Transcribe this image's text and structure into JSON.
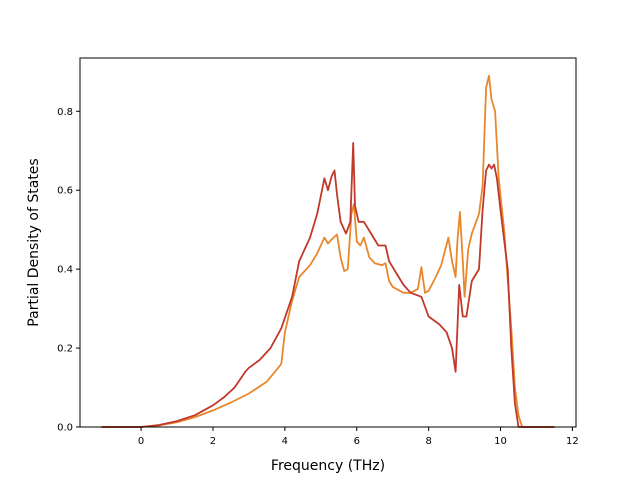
{
  "chart_data": {
    "type": "line",
    "title": "",
    "xlabel": "Frequency (THz)",
    "ylabel": "Partial Density of States",
    "xlim": [
      -1.7,
      12.1
    ],
    "ylim": [
      0.0,
      0.935
    ],
    "xticks": [
      0,
      2,
      4,
      6,
      8,
      10,
      12
    ],
    "yticks": [
      0.0,
      0.2,
      0.4,
      0.6,
      0.8
    ],
    "xtick_labels": [
      "0",
      "2",
      "4",
      "6",
      "8",
      "10",
      "12"
    ],
    "ytick_labels": [
      "0.0",
      "0.2",
      "0.4",
      "0.6",
      "0.8"
    ],
    "grid": false,
    "legend": "none",
    "series": [
      {
        "color": "#e8872b",
        "points": [
          [
            -1.1,
            0.0
          ],
          [
            0.0,
            0.0
          ],
          [
            0.5,
            0.004
          ],
          [
            1.0,
            0.012
          ],
          [
            1.5,
            0.025
          ],
          [
            2.0,
            0.042
          ],
          [
            2.5,
            0.062
          ],
          [
            3.0,
            0.085
          ],
          [
            3.5,
            0.115
          ],
          [
            3.9,
            0.16
          ],
          [
            4.0,
            0.24
          ],
          [
            4.2,
            0.32
          ],
          [
            4.4,
            0.38
          ],
          [
            4.7,
            0.41
          ],
          [
            4.9,
            0.44
          ],
          [
            5.1,
            0.48
          ],
          [
            5.2,
            0.465
          ],
          [
            5.3,
            0.475
          ],
          [
            5.45,
            0.488
          ],
          [
            5.55,
            0.43
          ],
          [
            5.65,
            0.395
          ],
          [
            5.75,
            0.4
          ],
          [
            5.85,
            0.54
          ],
          [
            5.92,
            0.565
          ],
          [
            6.0,
            0.47
          ],
          [
            6.1,
            0.46
          ],
          [
            6.2,
            0.48
          ],
          [
            6.35,
            0.43
          ],
          [
            6.5,
            0.415
          ],
          [
            6.7,
            0.41
          ],
          [
            6.8,
            0.415
          ],
          [
            6.9,
            0.37
          ],
          [
            7.0,
            0.355
          ],
          [
            7.3,
            0.34
          ],
          [
            7.5,
            0.34
          ],
          [
            7.7,
            0.35
          ],
          [
            7.8,
            0.405
          ],
          [
            7.9,
            0.34
          ],
          [
            8.0,
            0.345
          ],
          [
            8.2,
            0.38
          ],
          [
            8.35,
            0.41
          ],
          [
            8.45,
            0.445
          ],
          [
            8.55,
            0.48
          ],
          [
            8.65,
            0.42
          ],
          [
            8.75,
            0.38
          ],
          [
            8.8,
            0.47
          ],
          [
            8.87,
            0.545
          ],
          [
            8.95,
            0.42
          ],
          [
            9.0,
            0.33
          ],
          [
            9.1,
            0.45
          ],
          [
            9.2,
            0.49
          ],
          [
            9.4,
            0.54
          ],
          [
            9.5,
            0.61
          ],
          [
            9.6,
            0.86
          ],
          [
            9.68,
            0.89
          ],
          [
            9.75,
            0.83
          ],
          [
            9.85,
            0.8
          ],
          [
            9.95,
            0.63
          ],
          [
            10.1,
            0.5
          ],
          [
            10.3,
            0.25
          ],
          [
            10.4,
            0.1
          ],
          [
            10.5,
            0.03
          ],
          [
            10.6,
            0.0
          ],
          [
            11.5,
            0.0
          ]
        ]
      },
      {
        "color": "#c0392b",
        "points": [
          [
            -1.1,
            0.0
          ],
          [
            0.0,
            0.0
          ],
          [
            0.5,
            0.005
          ],
          [
            1.0,
            0.015
          ],
          [
            1.5,
            0.03
          ],
          [
            2.0,
            0.055
          ],
          [
            2.3,
            0.075
          ],
          [
            2.6,
            0.1
          ],
          [
            2.9,
            0.14
          ],
          [
            3.0,
            0.15
          ],
          [
            3.3,
            0.17
          ],
          [
            3.6,
            0.2
          ],
          [
            3.9,
            0.25
          ],
          [
            4.2,
            0.33
          ],
          [
            4.4,
            0.42
          ],
          [
            4.7,
            0.48
          ],
          [
            4.9,
            0.54
          ],
          [
            5.1,
            0.63
          ],
          [
            5.2,
            0.6
          ],
          [
            5.3,
            0.635
          ],
          [
            5.38,
            0.65
          ],
          [
            5.45,
            0.59
          ],
          [
            5.55,
            0.52
          ],
          [
            5.7,
            0.49
          ],
          [
            5.82,
            0.52
          ],
          [
            5.9,
            0.72
          ],
          [
            5.95,
            0.56
          ],
          [
            6.05,
            0.52
          ],
          [
            6.2,
            0.52
          ],
          [
            6.4,
            0.49
          ],
          [
            6.6,
            0.46
          ],
          [
            6.8,
            0.46
          ],
          [
            6.9,
            0.42
          ],
          [
            7.1,
            0.39
          ],
          [
            7.3,
            0.36
          ],
          [
            7.5,
            0.34
          ],
          [
            7.8,
            0.33
          ],
          [
            8.0,
            0.28
          ],
          [
            8.3,
            0.26
          ],
          [
            8.5,
            0.24
          ],
          [
            8.65,
            0.2
          ],
          [
            8.75,
            0.14
          ],
          [
            8.85,
            0.36
          ],
          [
            8.95,
            0.28
          ],
          [
            9.05,
            0.28
          ],
          [
            9.2,
            0.37
          ],
          [
            9.4,
            0.4
          ],
          [
            9.5,
            0.55
          ],
          [
            9.6,
            0.65
          ],
          [
            9.68,
            0.665
          ],
          [
            9.75,
            0.655
          ],
          [
            9.82,
            0.665
          ],
          [
            9.9,
            0.63
          ],
          [
            10.0,
            0.55
          ],
          [
            10.2,
            0.4
          ],
          [
            10.3,
            0.2
          ],
          [
            10.4,
            0.06
          ],
          [
            10.5,
            0.0
          ],
          [
            11.5,
            0.0
          ]
        ]
      }
    ]
  }
}
